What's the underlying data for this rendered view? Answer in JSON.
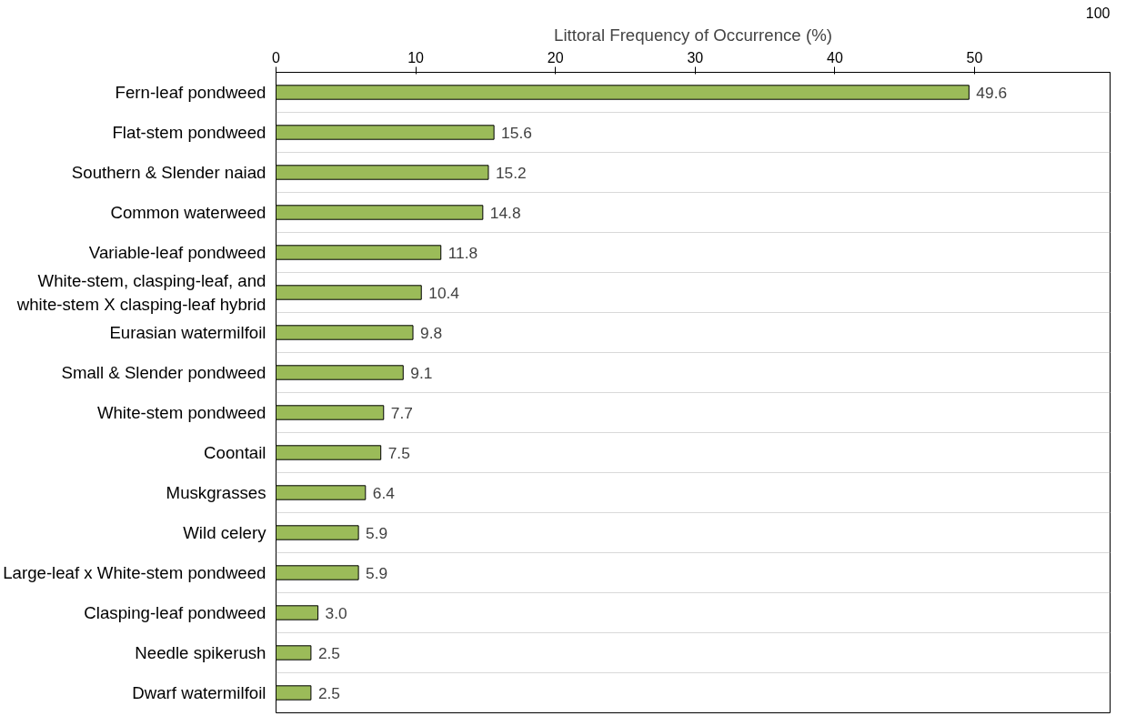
{
  "chart_data": {
    "type": "bar",
    "orientation": "horizontal",
    "xlabel": "Littoral Frequency of Occurrence (%)",
    "categories": [
      "Fern-leaf pondweed",
      "Flat-stem pondweed",
      "Southern & Slender naiad",
      "Common waterweed",
      "Variable-leaf pondweed",
      "White-stem, clasping-leaf, and\nwhite-stem X clasping-leaf hybrid",
      "Eurasian watermilfoil",
      "Small & Slender pondweed",
      "White-stem pondweed",
      "Coontail",
      "Muskgrasses",
      "Wild celery",
      "Large-leaf x White-stem pondweed",
      "Clasping-leaf pondweed",
      "Needle spikerush",
      "Dwarf watermilfoil"
    ],
    "values": [
      49.6,
      15.6,
      15.2,
      14.8,
      11.8,
      10.4,
      9.8,
      9.1,
      7.7,
      7.5,
      6.4,
      5.9,
      5.9,
      3.0,
      2.5,
      2.5
    ],
    "value_labels": [
      "49.6",
      "15.6",
      "15.2",
      "14.8",
      "11.8",
      "10.4",
      "9.8",
      "9.1",
      "7.7",
      "7.5",
      "6.4",
      "5.9",
      "5.9",
      "3.0",
      "2.5",
      "2.5"
    ],
    "color": "#9bbb59",
    "xlim": [
      0,
      59.7
    ],
    "xticks": [
      0,
      10,
      20,
      30,
      40,
      50
    ],
    "annotations": [
      "100"
    ],
    "grid": "y"
  }
}
